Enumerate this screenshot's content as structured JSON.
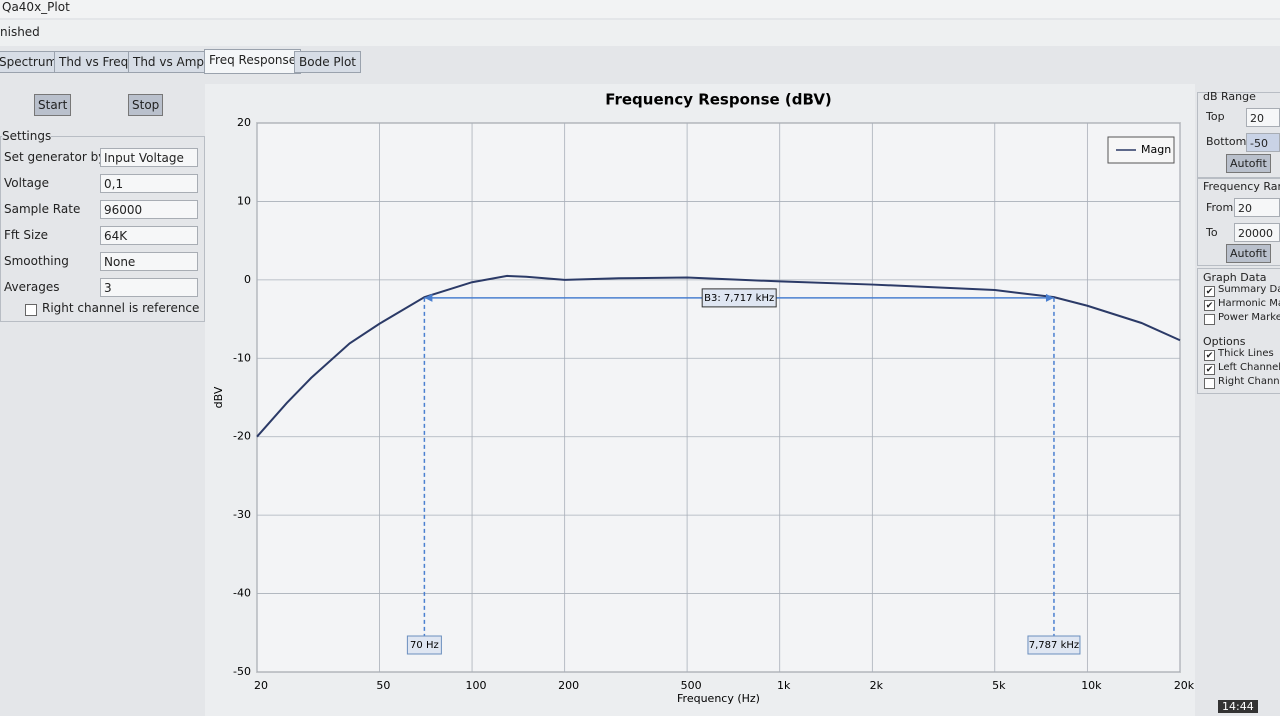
{
  "window": {
    "title": "Qa40x_Plot",
    "status": "nished"
  },
  "tabs": [
    "Spectrum",
    "Thd vs Freq",
    "Thd vs Amp",
    "Freq Response",
    "Bode Plot"
  ],
  "active_tab": 3,
  "buttons": [
    "Start",
    "Stop"
  ],
  "settings": {
    "title": "Settings",
    "rows": [
      {
        "label": "Set generator by",
        "value": "Input Voltage"
      },
      {
        "label": "Voltage",
        "value": "0,1"
      },
      {
        "label": "Sample Rate",
        "value": "96000"
      },
      {
        "label": "Fft Size",
        "value": "64K"
      },
      {
        "label": "Smoothing",
        "value": "None"
      },
      {
        "label": "Averages",
        "value": "3"
      }
    ],
    "reference": {
      "label": "Right channel is reference",
      "checked": false
    }
  },
  "right_panel": {
    "db_range": {
      "title": "dB Range",
      "top_label": "Top",
      "top": "20",
      "bottom_label": "Bottom",
      "bottom": "-50",
      "button": "Autofit"
    },
    "freq_range": {
      "title": "Frequency Rang",
      "from_label": "From",
      "from": "20",
      "to_label": "To",
      "to": "20000",
      "button": "Autofit"
    },
    "graph_data": {
      "title": "Graph Data",
      "items": [
        {
          "label": "Summary Da",
          "checked": true
        },
        {
          "label": "Harmonic Ma",
          "checked": true
        },
        {
          "label": "Power Marke",
          "checked": false
        }
      ]
    },
    "options": {
      "title": "Options",
      "items": [
        {
          "label": "Thick Lines",
          "checked": true
        },
        {
          "label": "Left Channel",
          "checked": true
        },
        {
          "label": "Right Channe",
          "checked": false
        }
      ]
    }
  },
  "clock": "14:44",
  "chart_data": {
    "type": "line",
    "title": "Frequency Response (dBV)",
    "x_label": "Frequency (Hz)",
    "y_label": "dBV",
    "x": [
      20,
      25,
      30,
      40,
      50,
      70,
      100,
      130,
      150,
      200,
      300,
      500,
      1000,
      2000,
      5000,
      7787,
      10000,
      15000,
      20000
    ],
    "series": [
      {
        "name": "Magn",
        "color": "#2b3a67",
        "values": [
          -20,
          -15.7,
          -12.5,
          -8.1,
          -5.6,
          -2.2,
          -0.3,
          0.5,
          0.4,
          0,
          0.2,
          0.3,
          -0.2,
          -0.6,
          -1.3,
          -2.2,
          -3.3,
          -5.5,
          -7.7
        ]
      }
    ],
    "xscale": "log",
    "xlim": [
      20,
      20000
    ],
    "xticks": [
      20,
      50,
      100,
      200,
      500,
      {
        "value": 1000,
        "label": "1k"
      },
      {
        "value": 2000,
        "label": "2k"
      },
      {
        "value": 5000,
        "label": "5k"
      },
      {
        "value": 10000,
        "label": "10k"
      },
      {
        "value": 20000,
        "label": "20k"
      }
    ],
    "ylim": [
      -50,
      20
    ],
    "yticks": [
      -50,
      -40,
      -30,
      -20,
      -10,
      0,
      10,
      20
    ],
    "grid": true,
    "legend": "top-right",
    "b3": {
      "label": "B3: 7,717 kHz",
      "level": -2.3,
      "color": "#4a7fd0",
      "markers": [
        {
          "x": 70,
          "label": "70 Hz"
        },
        {
          "x": 7787,
          "label": "7,787 kHz"
        }
      ]
    }
  }
}
